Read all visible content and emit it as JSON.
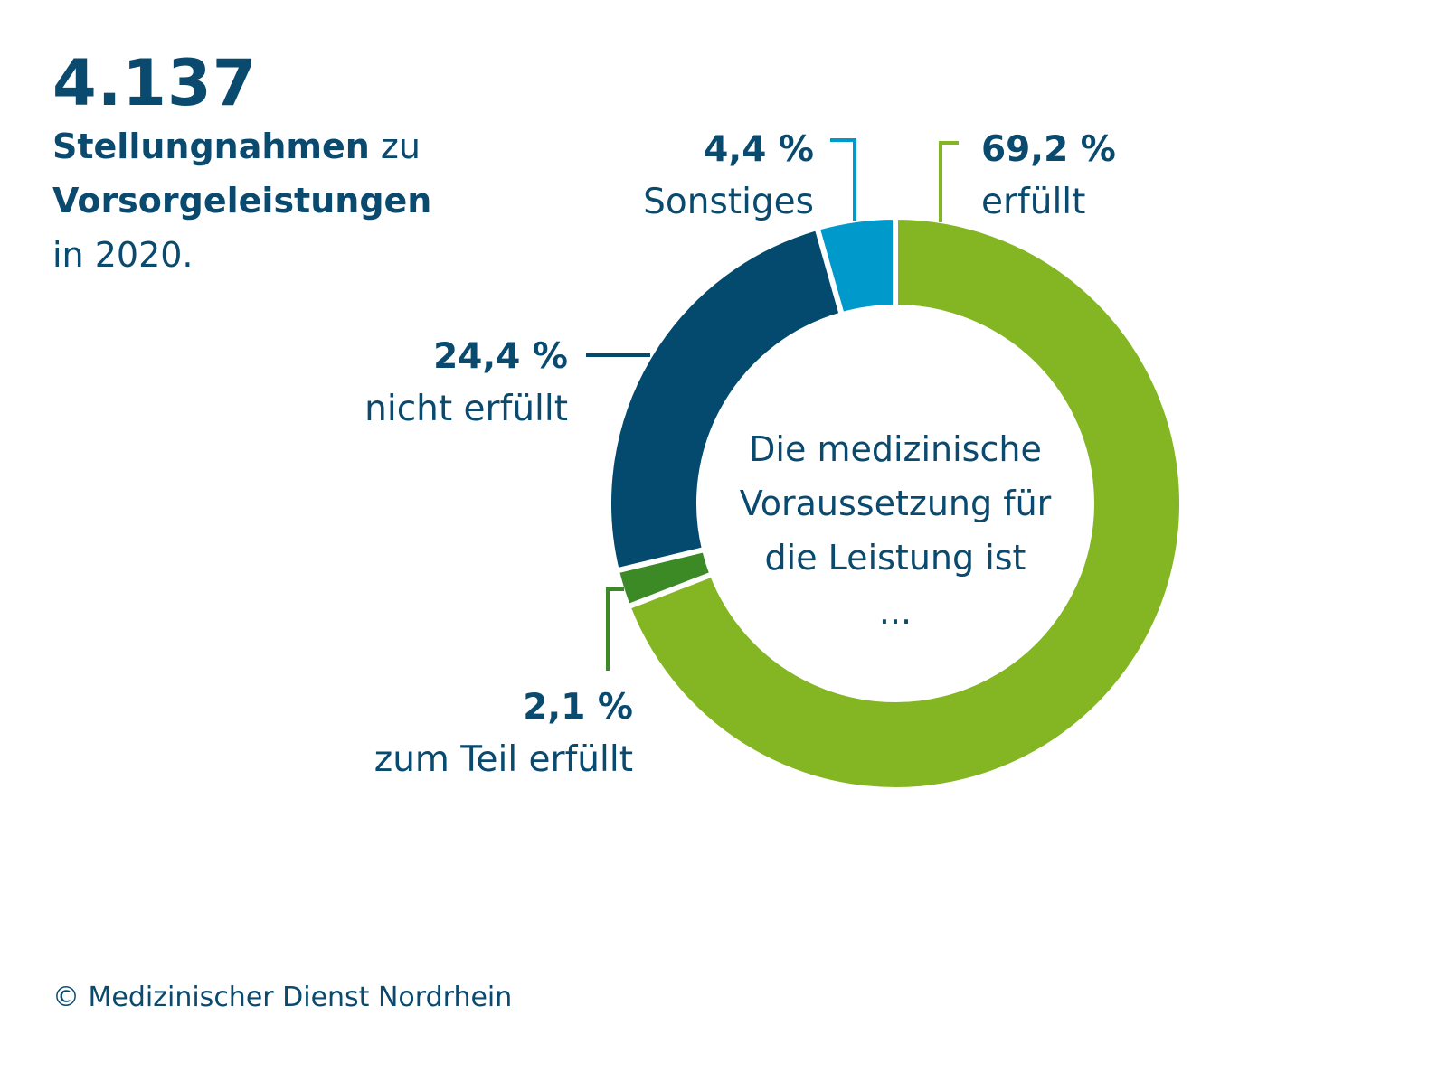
{
  "headline": {
    "number": "4.137",
    "line1_bold": "Stellungnahmen",
    "line1_rest": " zu",
    "line2_bold": "Vorsorgeleistungen",
    "line3": "in 2020."
  },
  "chart_data": {
    "type": "pie",
    "center_text": [
      "Die medizinische",
      "Voraussetzung für",
      "die Leistung ist",
      "..."
    ],
    "slices": [
      {
        "label": "erfüllt",
        "value": 69.2,
        "value_label": "69,2 %",
        "color": "#84b523"
      },
      {
        "label": "zum Teil erfüllt",
        "value": 2.1,
        "value_label": "2,1 %",
        "color": "#3b8a26"
      },
      {
        "label": "nicht erfüllt",
        "value": 24.4,
        "value_label": "24,4 %",
        "color": "#034a6e"
      },
      {
        "label": "Sonstiges",
        "value": 4.4,
        "value_label": "4,4 %",
        "color": "#0099cc"
      }
    ]
  },
  "footer": "© Medizinischer Dienst Nordrhein"
}
